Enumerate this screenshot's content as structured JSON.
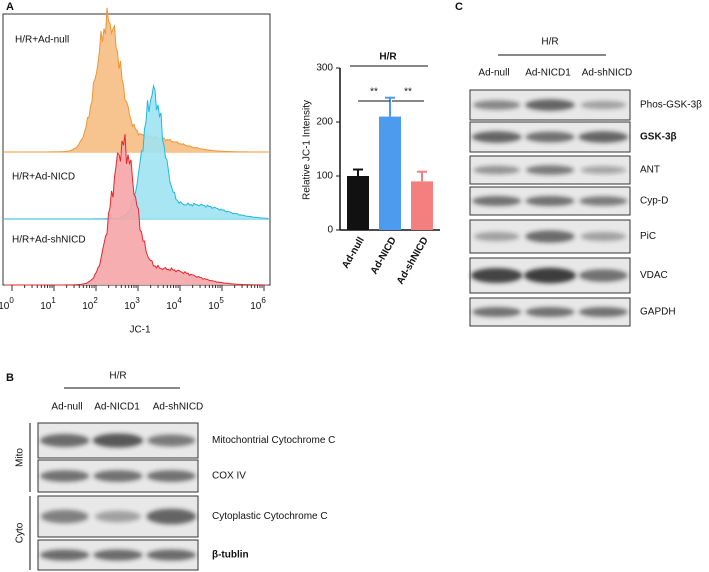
{
  "panel_a": {
    "label": "A",
    "histogram": {
      "sample_labels": [
        "H/R+Ad-null",
        "H/R+Ad-NICD",
        "H/R+Ad-shNICD"
      ],
      "xtick_labels": [
        {
          "base": "10",
          "exp": "0"
        },
        {
          "base": "10",
          "exp": "1"
        },
        {
          "base": "10",
          "exp": "2"
        },
        {
          "base": "10",
          "exp": "3"
        },
        {
          "base": "10",
          "exp": "4"
        },
        {
          "base": "10",
          "exp": "5"
        },
        {
          "base": "10",
          "exp": "6"
        }
      ],
      "xlabel": "JC-1"
    }
  },
  "chart_data": {
    "type": "bar",
    "title": "H/R",
    "ylabel": "Relative JC-1 Intensity",
    "categories": [
      "Ad-null",
      "Ad-NICD",
      "Ad-shNICD"
    ],
    "values": [
      100,
      210,
      90
    ],
    "errors": [
      12,
      35,
      18
    ],
    "colors": [
      "#111111",
      "#4c9bef",
      "#f47f7f"
    ],
    "ylim": [
      0,
      300
    ],
    "yticks": [
      0,
      100,
      200,
      300
    ],
    "annotations": [
      "**",
      "**"
    ]
  },
  "panel_b": {
    "label": "B",
    "condition": "H/R",
    "columns": [
      "Ad-null",
      "Ad-NICD1",
      "Ad-shNICD"
    ],
    "groups": [
      "Mito",
      "Cyto"
    ],
    "rows": [
      "Mitochontrial Cytochrome C",
      "COX IV",
      "Cytoplastic Cytochrome C",
      "β-tublin"
    ]
  },
  "panel_c": {
    "label": "C",
    "condition": "H/R",
    "columns": [
      "Ad-null",
      "Ad-NICD1",
      "Ad-shNICD"
    ],
    "rows": [
      "Phos-GSK-3β",
      "GSK-3β",
      "ANT",
      "Cyp-D",
      "PiC",
      "VDAC",
      "GAPDH"
    ]
  }
}
